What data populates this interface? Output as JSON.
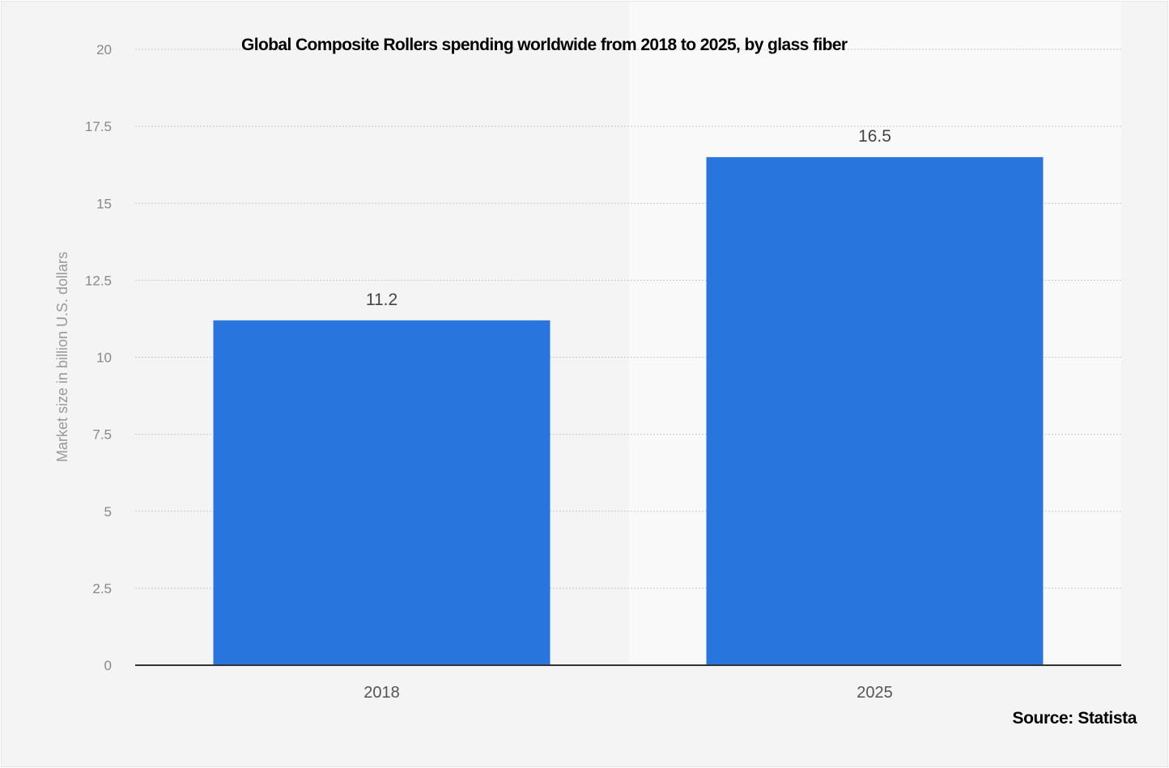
{
  "chart_data": {
    "type": "bar",
    "title": "Global Composite Rollers spending worldwide from 2018 to 2025, by glass fiber",
    "categories": [
      "2018",
      "2025"
    ],
    "values": [
      11.2,
      16.5
    ],
    "data_labels": [
      "11.2",
      "16.5"
    ],
    "xlabel": "",
    "ylabel": "Market size in billion U.S. dollars",
    "ylim": [
      0,
      20
    ],
    "yticks": [
      "0",
      "2.5",
      "5",
      "7.5",
      "10",
      "12.5",
      "15",
      "17.5",
      "20"
    ],
    "grid": true,
    "bar_color": "#2876dd",
    "source": "Source: Statista"
  }
}
